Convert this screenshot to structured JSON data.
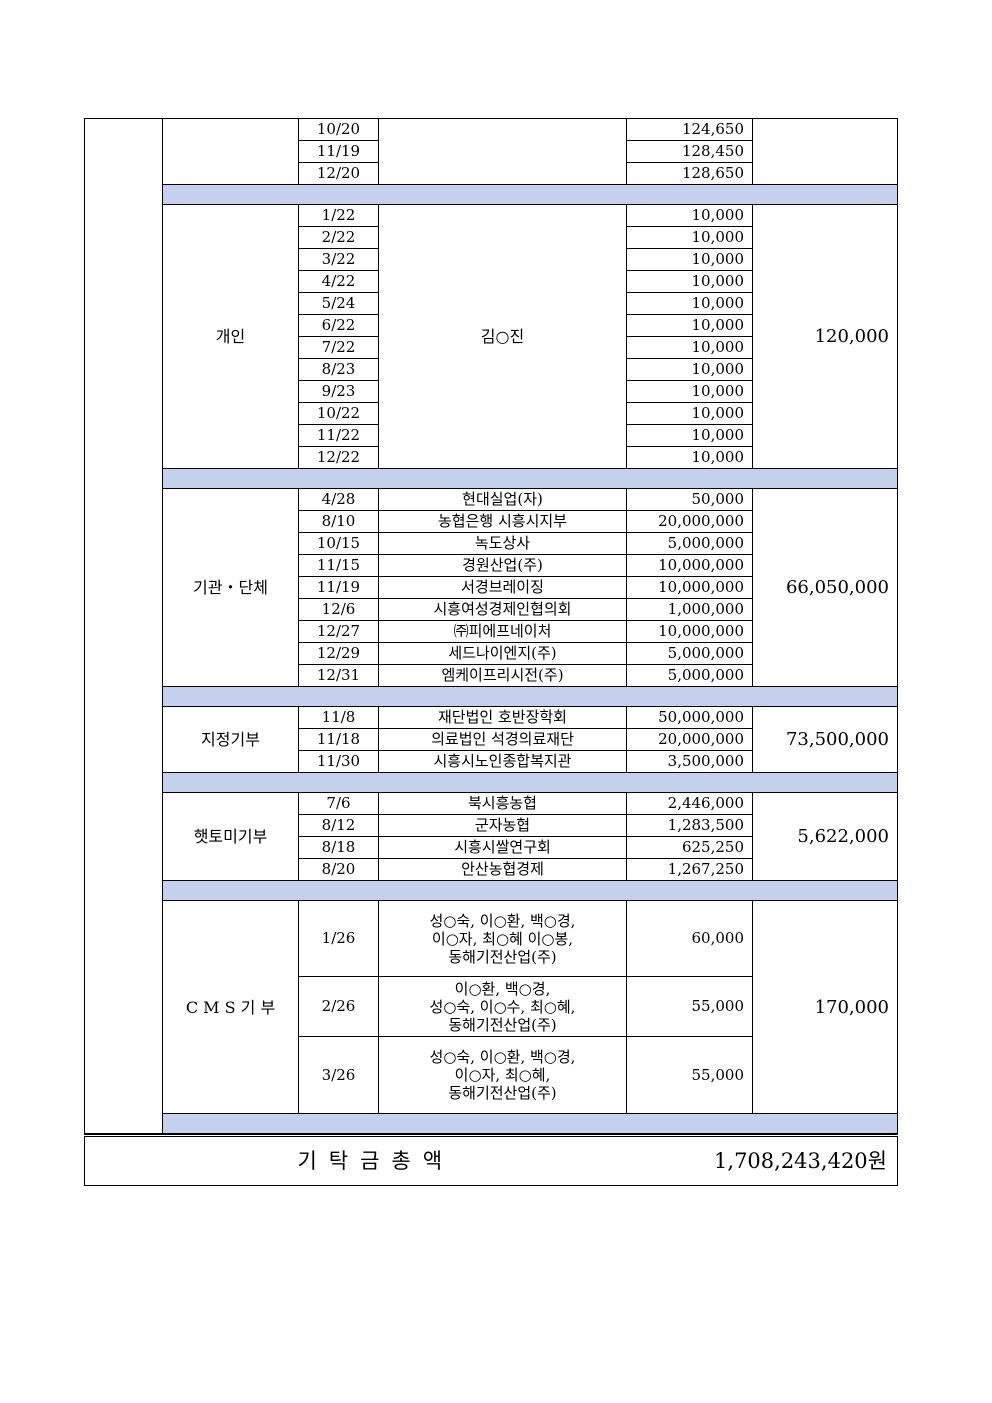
{
  "groups": [
    {
      "category": "",
      "recipient_total": "",
      "rows": [
        {
          "date": "10/20",
          "amount": "124,650"
        },
        {
          "date": "11/19",
          "amount": "128,450"
        },
        {
          "date": "12/20",
          "amount": "128,650"
        }
      ],
      "shared_name": ""
    },
    {
      "category": "개인",
      "recipient_total": "120,000",
      "shared_name": "김○진",
      "rows": [
        {
          "date": "1/22",
          "amount": "10,000"
        },
        {
          "date": "2/22",
          "amount": "10,000"
        },
        {
          "date": "3/22",
          "amount": "10,000"
        },
        {
          "date": "4/22",
          "amount": "10,000"
        },
        {
          "date": "5/24",
          "amount": "10,000"
        },
        {
          "date": "6/22",
          "amount": "10,000"
        },
        {
          "date": "7/22",
          "amount": "10,000"
        },
        {
          "date": "8/23",
          "amount": "10,000"
        },
        {
          "date": "9/23",
          "amount": "10,000"
        },
        {
          "date": "10/22",
          "amount": "10,000"
        },
        {
          "date": "11/22",
          "amount": "10,000"
        },
        {
          "date": "12/22",
          "amount": "10,000"
        }
      ]
    },
    {
      "category": "기관・단체",
      "recipient_total": "66,050,000",
      "rows": [
        {
          "date": "4/28",
          "name": "현대실업(자)",
          "amount": "50,000"
        },
        {
          "date": "8/10",
          "name": "농협은행 시흥시지부",
          "amount": "20,000,000"
        },
        {
          "date": "10/15",
          "name": "녹도상사",
          "amount": "5,000,000"
        },
        {
          "date": "11/15",
          "name": "경원산업(주)",
          "amount": "10,000,000"
        },
        {
          "date": "11/19",
          "name": "서경브레이징",
          "amount": "10,000,000"
        },
        {
          "date": "12/6",
          "name": "시흥여성경제인협의회",
          "amount": "1,000,000"
        },
        {
          "date": "12/27",
          "name": "㈜피에프네이처",
          "amount": "10,000,000"
        },
        {
          "date": "12/29",
          "name": "세드나이엔지(주)",
          "amount": "5,000,000"
        },
        {
          "date": "12/31",
          "name": "엠케이프리시전(주)",
          "amount": "5,000,000"
        }
      ]
    },
    {
      "category": "지정기부",
      "recipient_total": "73,500,000",
      "rows": [
        {
          "date": "11/8",
          "name": "재단법인 호반장학회",
          "amount": "50,000,000"
        },
        {
          "date": "11/18",
          "name": "의료법인 석경의료재단",
          "amount": "20,000,000"
        },
        {
          "date": "11/30",
          "name": "시흥시노인종합복지관",
          "amount": "3,500,000"
        }
      ]
    },
    {
      "category": "햇토미기부",
      "recipient_total": "5,622,000",
      "rows": [
        {
          "date": "7/6",
          "name": "북시흥농협",
          "amount": "2,446,000"
        },
        {
          "date": "8/12",
          "name": "군자농협",
          "amount": "1,283,500"
        },
        {
          "date": "8/18",
          "name": "시흥시쌀연구회",
          "amount": "625,250"
        },
        {
          "date": "8/20",
          "name": "안산농협경제",
          "amount": "1,267,250"
        }
      ]
    },
    {
      "category": "C M S 기 부",
      "recipient_total": "170,000",
      "tall": true,
      "rows": [
        {
          "date": "1/26",
          "name": "성○숙, 이○환, 백○경,\n이○자, 최○혜 이○봉,\n동해기전산업(주)",
          "amount": "60,000"
        },
        {
          "date": "2/26",
          "name": "이○환, 백○경,\n성○숙, 이○수, 최○혜,\n동해기전산업(주)",
          "amount": "55,000"
        },
        {
          "date": "3/26",
          "name": "성○숙, 이○환, 백○경,\n이○자, 최○혜,\n동해기전산업(주)",
          "amount": "55,000"
        }
      ]
    }
  ],
  "total": {
    "label": "기탁금총액",
    "value": "1,708,243,420원"
  },
  "colors": {
    "separator": "#c5d1ec"
  }
}
